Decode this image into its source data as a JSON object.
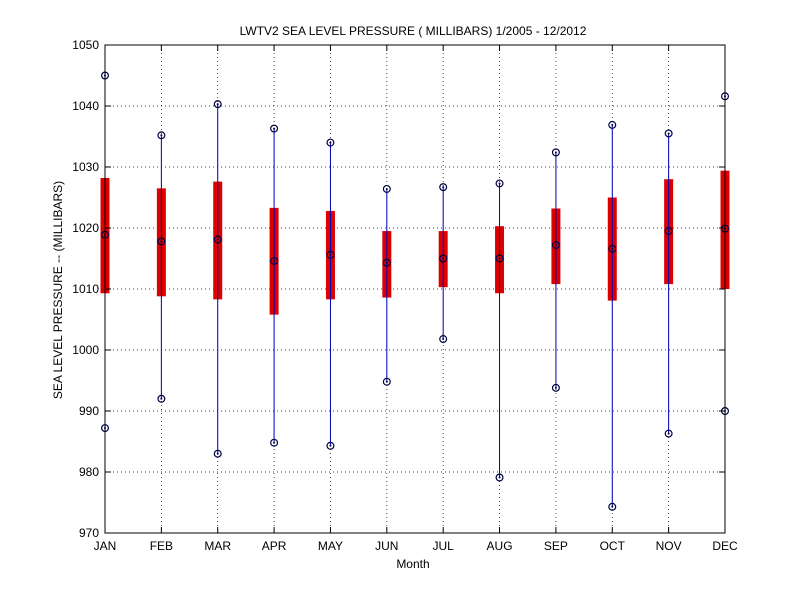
{
  "chart_data": {
    "type": "box",
    "title": "LWTV2  SEA LEVEL PRESSURE ( MILLIBARS) 1/2005 - 12/2012",
    "xlabel": "Month",
    "ylabel": "SEA LEVEL PRESSURE -- (MILLIBARS)",
    "ylim": [
      970,
      1050
    ],
    "yticks": [
      970,
      980,
      990,
      1000,
      1010,
      1020,
      1030,
      1040,
      1050
    ],
    "grid": true,
    "categories": [
      "JAN",
      "FEB",
      "MAR",
      "APR",
      "MAY",
      "JUN",
      "JUL",
      "AUG",
      "SEP",
      "OCT",
      "NOV",
      "DEC"
    ],
    "min": [
      987.2,
      992.0,
      983.0,
      984.8,
      984.3,
      994.8,
      1001.8,
      979.1,
      993.8,
      974.3,
      986.3,
      990.0
    ],
    "q1": [
      1009.3,
      1008.8,
      1008.3,
      1005.8,
      1008.3,
      1008.6,
      1010.3,
      1009.3,
      1010.8,
      1008.1,
      1010.8,
      1010.0
    ],
    "center": [
      1018.9,
      1017.8,
      1018.1,
      1014.6,
      1015.6,
      1014.3,
      1015.0,
      1015.0,
      1017.2,
      1016.6,
      1019.5,
      1019.9
    ],
    "q3": [
      1028.2,
      1026.5,
      1027.6,
      1023.3,
      1022.8,
      1019.5,
      1019.5,
      1020.3,
      1023.2,
      1025.0,
      1028.0,
      1029.4
    ],
    "max": [
      1045.0,
      1035.2,
      1040.3,
      1036.3,
      1034.0,
      1026.4,
      1026.7,
      1027.3,
      1032.4,
      1036.9,
      1035.5,
      1041.6
    ],
    "colors": {
      "whisker": "#0000bb",
      "box": "#dd0000",
      "marker": "#000044",
      "grid": "#000000",
      "axis": "#000000"
    }
  }
}
